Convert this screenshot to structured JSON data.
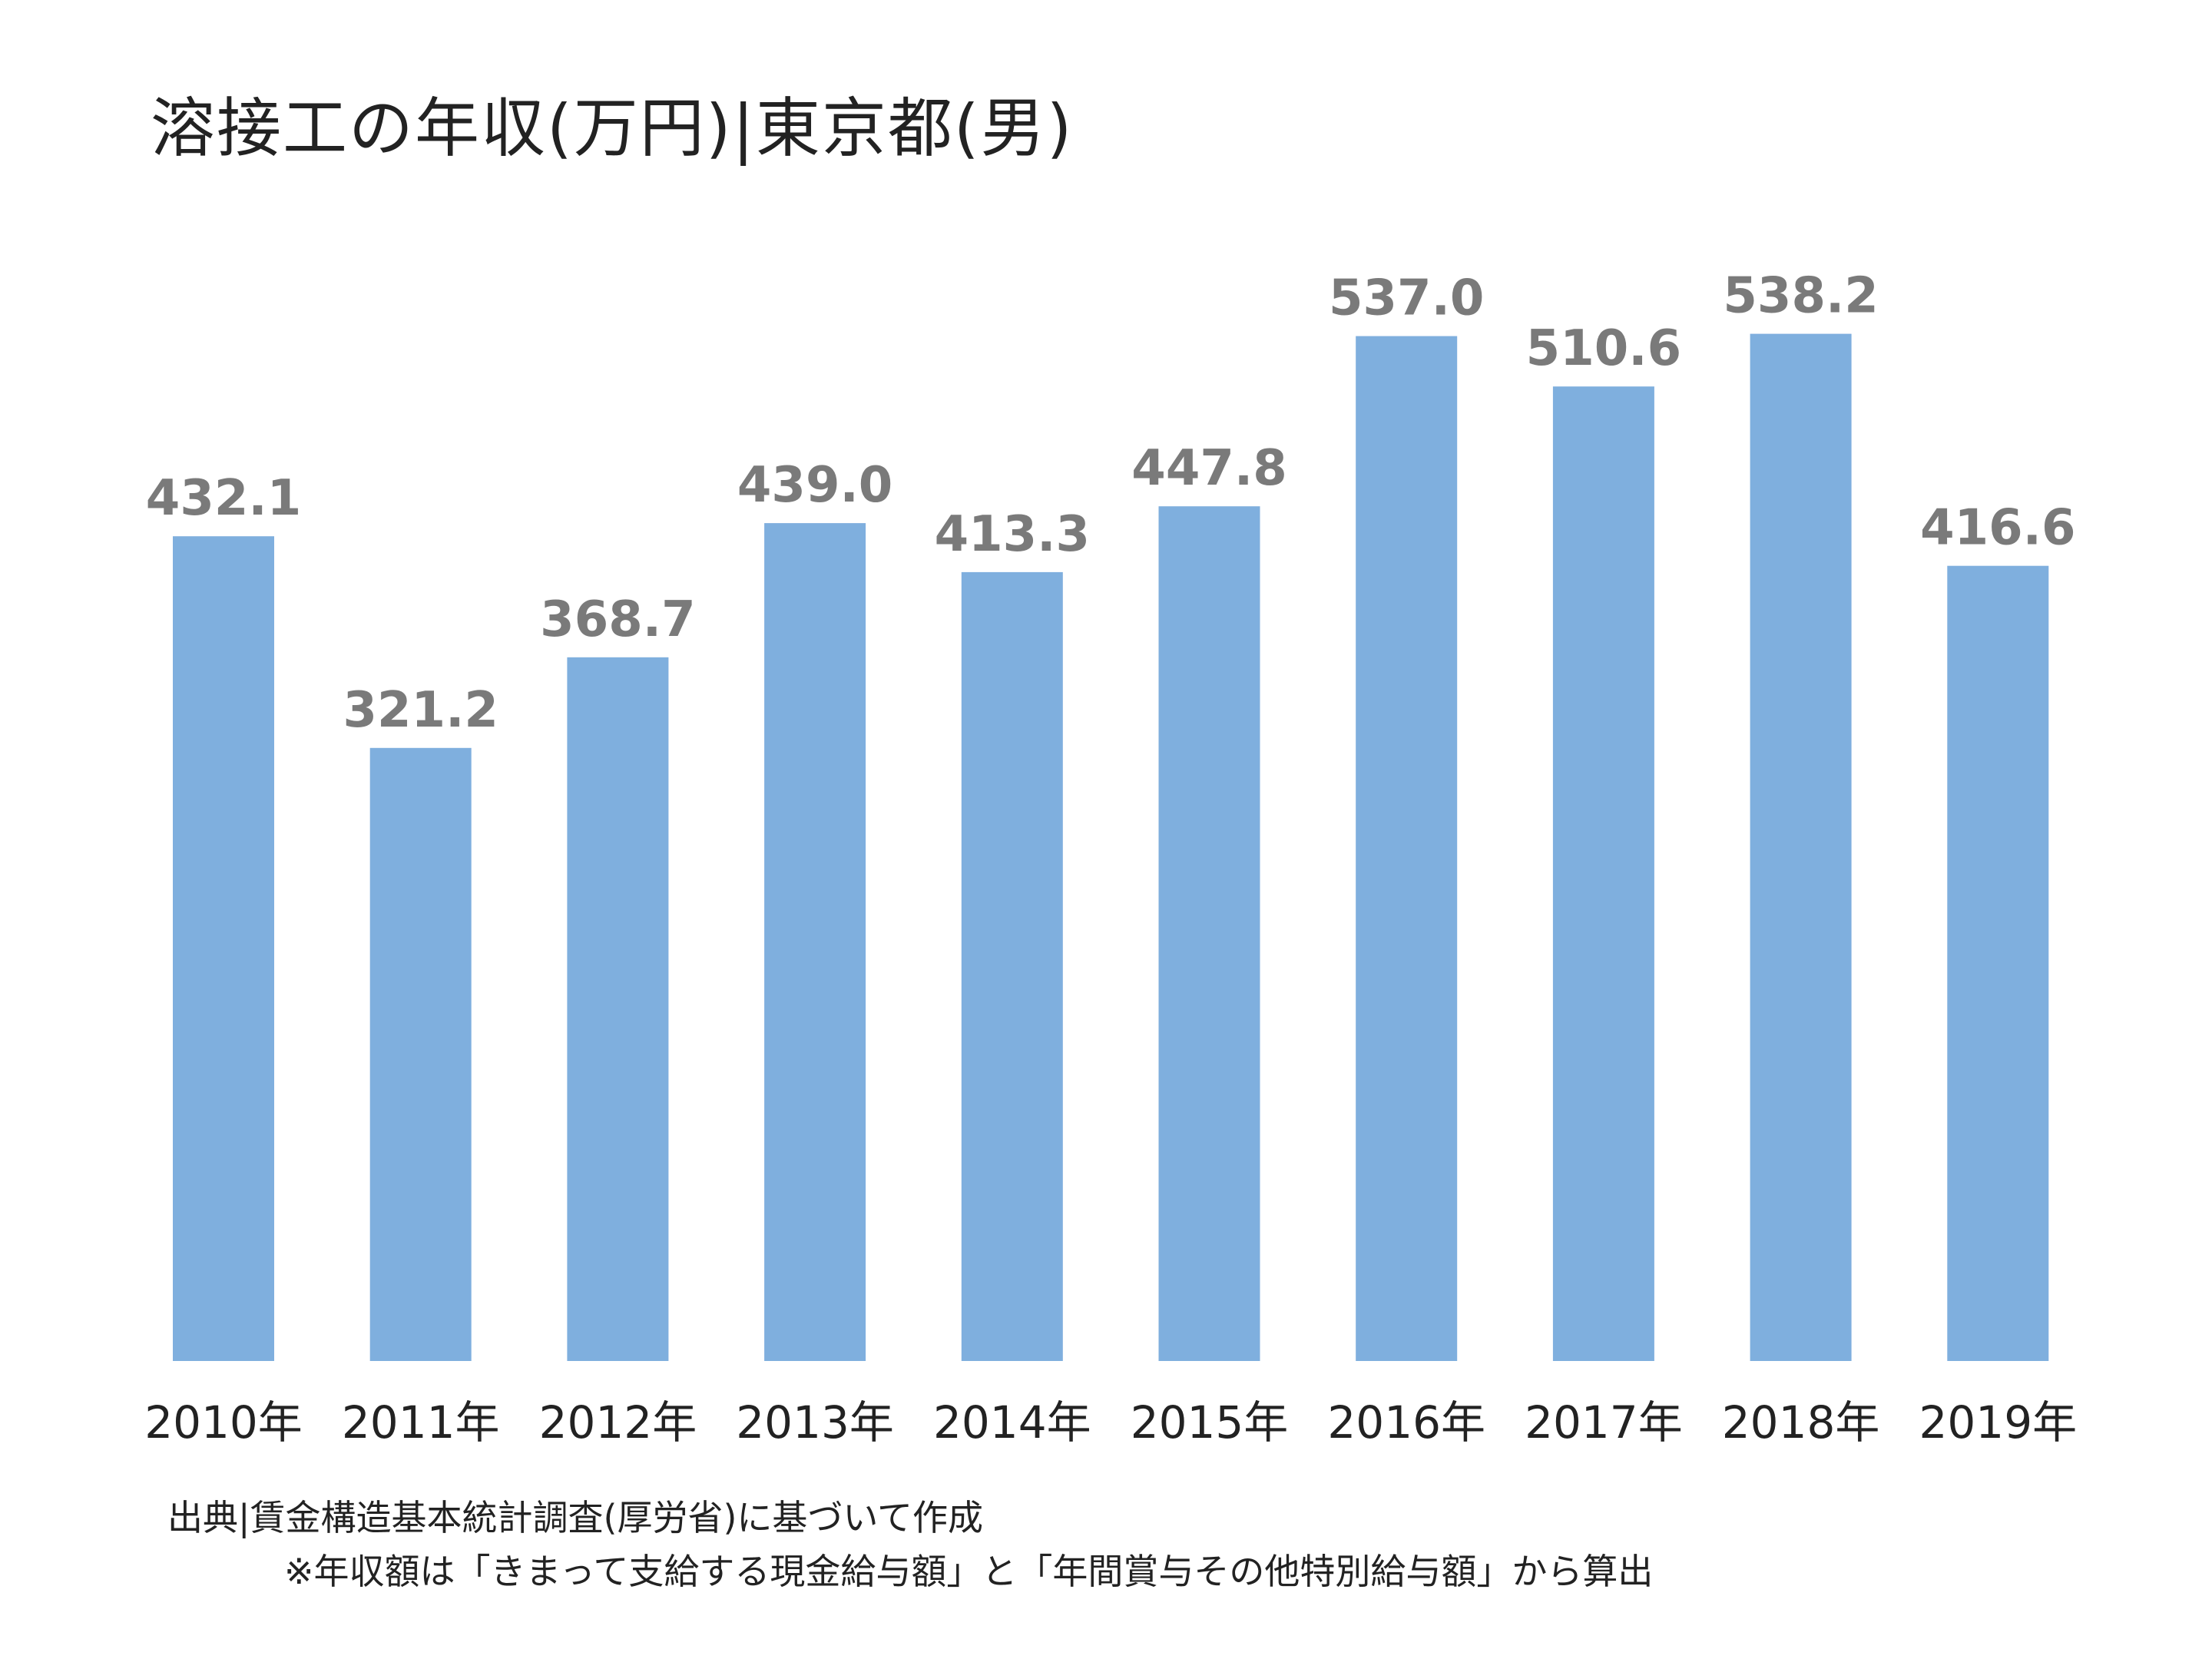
{
  "chart_data": {
    "type": "bar",
    "title": "溶接工の年収(万円)|東京都(男)",
    "categories": [
      "2010年",
      "2011年",
      "2012年",
      "2013年",
      "2014年",
      "2015年",
      "2016年",
      "2017年",
      "2018年",
      "2019年"
    ],
    "values": [
      432.1,
      321.2,
      368.7,
      439.0,
      413.3,
      447.8,
      537.0,
      510.6,
      538.2,
      416.6
    ],
    "value_labels": [
      "432.1",
      "321.2",
      "368.7",
      "439.0",
      "413.3",
      "447.8",
      "537.0",
      "510.6",
      "538.2",
      "416.6"
    ],
    "xlabel": "",
    "ylabel": "",
    "ylim": [
      0,
      650
    ],
    "grid": false,
    "legend": "none",
    "bar_color": "#7fafde",
    "label_color": "#7a7a7a"
  },
  "notes": {
    "source": "出典|賃金構造基本統計調査(厚労省)に基づいて作成",
    "calculation": "※年収額は「きまって支給する現金給与額」と「年間賞与その他特別給与額」から算出"
  }
}
